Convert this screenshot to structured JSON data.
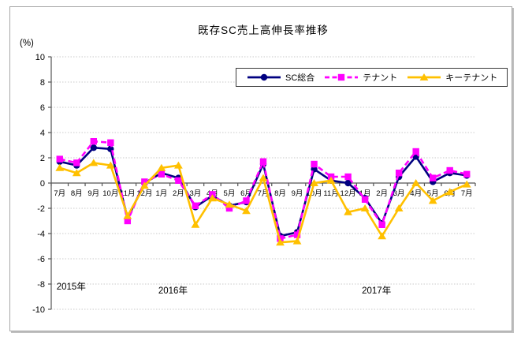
{
  "chart_data": {
    "type": "line",
    "title": "既存SC売上高伸長率推移",
    "unit_label": "(%)",
    "categories": [
      "7月",
      "8月",
      "9月",
      "10月",
      "11月",
      "12月",
      "1月",
      "2月",
      "3月",
      "4月",
      "5月",
      "6月",
      "7月",
      "8月",
      "9月",
      "10月",
      "11月",
      "12月",
      "1月",
      "2月",
      "3月",
      "4月",
      "5月",
      "6月",
      "7月"
    ],
    "year_groups": [
      {
        "label": "2015年",
        "start_index": 0
      },
      {
        "label": "2016年",
        "start_index": 6
      },
      {
        "label": "2017年",
        "start_index": 18
      }
    ],
    "series": [
      {
        "name": "SC総合",
        "color": "#000080",
        "marker": "circle",
        "line_style": "solid",
        "values": [
          1.7,
          1.4,
          2.8,
          2.7,
          -2.8,
          0.0,
          0.8,
          0.4,
          -1.9,
          -1.0,
          -1.8,
          -1.5,
          1.5,
          -4.2,
          -3.9,
          1.1,
          0.2,
          0.0,
          -1.2,
          -3.2,
          0.5,
          2.1,
          0.1,
          0.8,
          0.6
        ]
      },
      {
        "name": "テナント",
        "color": "#ff00ff",
        "marker": "square",
        "line_style": "dashed",
        "values": [
          1.9,
          1.6,
          3.3,
          3.2,
          -3.0,
          0.1,
          0.7,
          0.2,
          -1.8,
          -0.9,
          -2.0,
          -1.4,
          1.7,
          -4.4,
          -4.1,
          1.5,
          0.5,
          0.5,
          -1.3,
          -3.3,
          0.8,
          2.5,
          0.4,
          1.0,
          0.7
        ]
      },
      {
        "name": "キーテナント",
        "color": "#ffc000",
        "marker": "triangle",
        "line_style": "solid",
        "values": [
          1.2,
          0.8,
          1.6,
          1.4,
          -2.6,
          -0.2,
          1.2,
          1.4,
          -3.3,
          -1.2,
          -1.7,
          -2.2,
          0.4,
          -4.7,
          -4.6,
          0.0,
          0.2,
          -2.3,
          -2.0,
          -4.2,
          -2.0,
          0.0,
          -1.4,
          -0.7,
          -0.1
        ]
      }
    ],
    "ylim": [
      -10,
      10
    ],
    "ytick_step": 2,
    "grid": "horizontal-dotted",
    "legend_position": "top-center-inside",
    "style_colors": {
      "grid_line": "#c9c9c9",
      "axis_line": "#555555",
      "text": "#000000",
      "frame_border": "#a6a6a6"
    }
  }
}
